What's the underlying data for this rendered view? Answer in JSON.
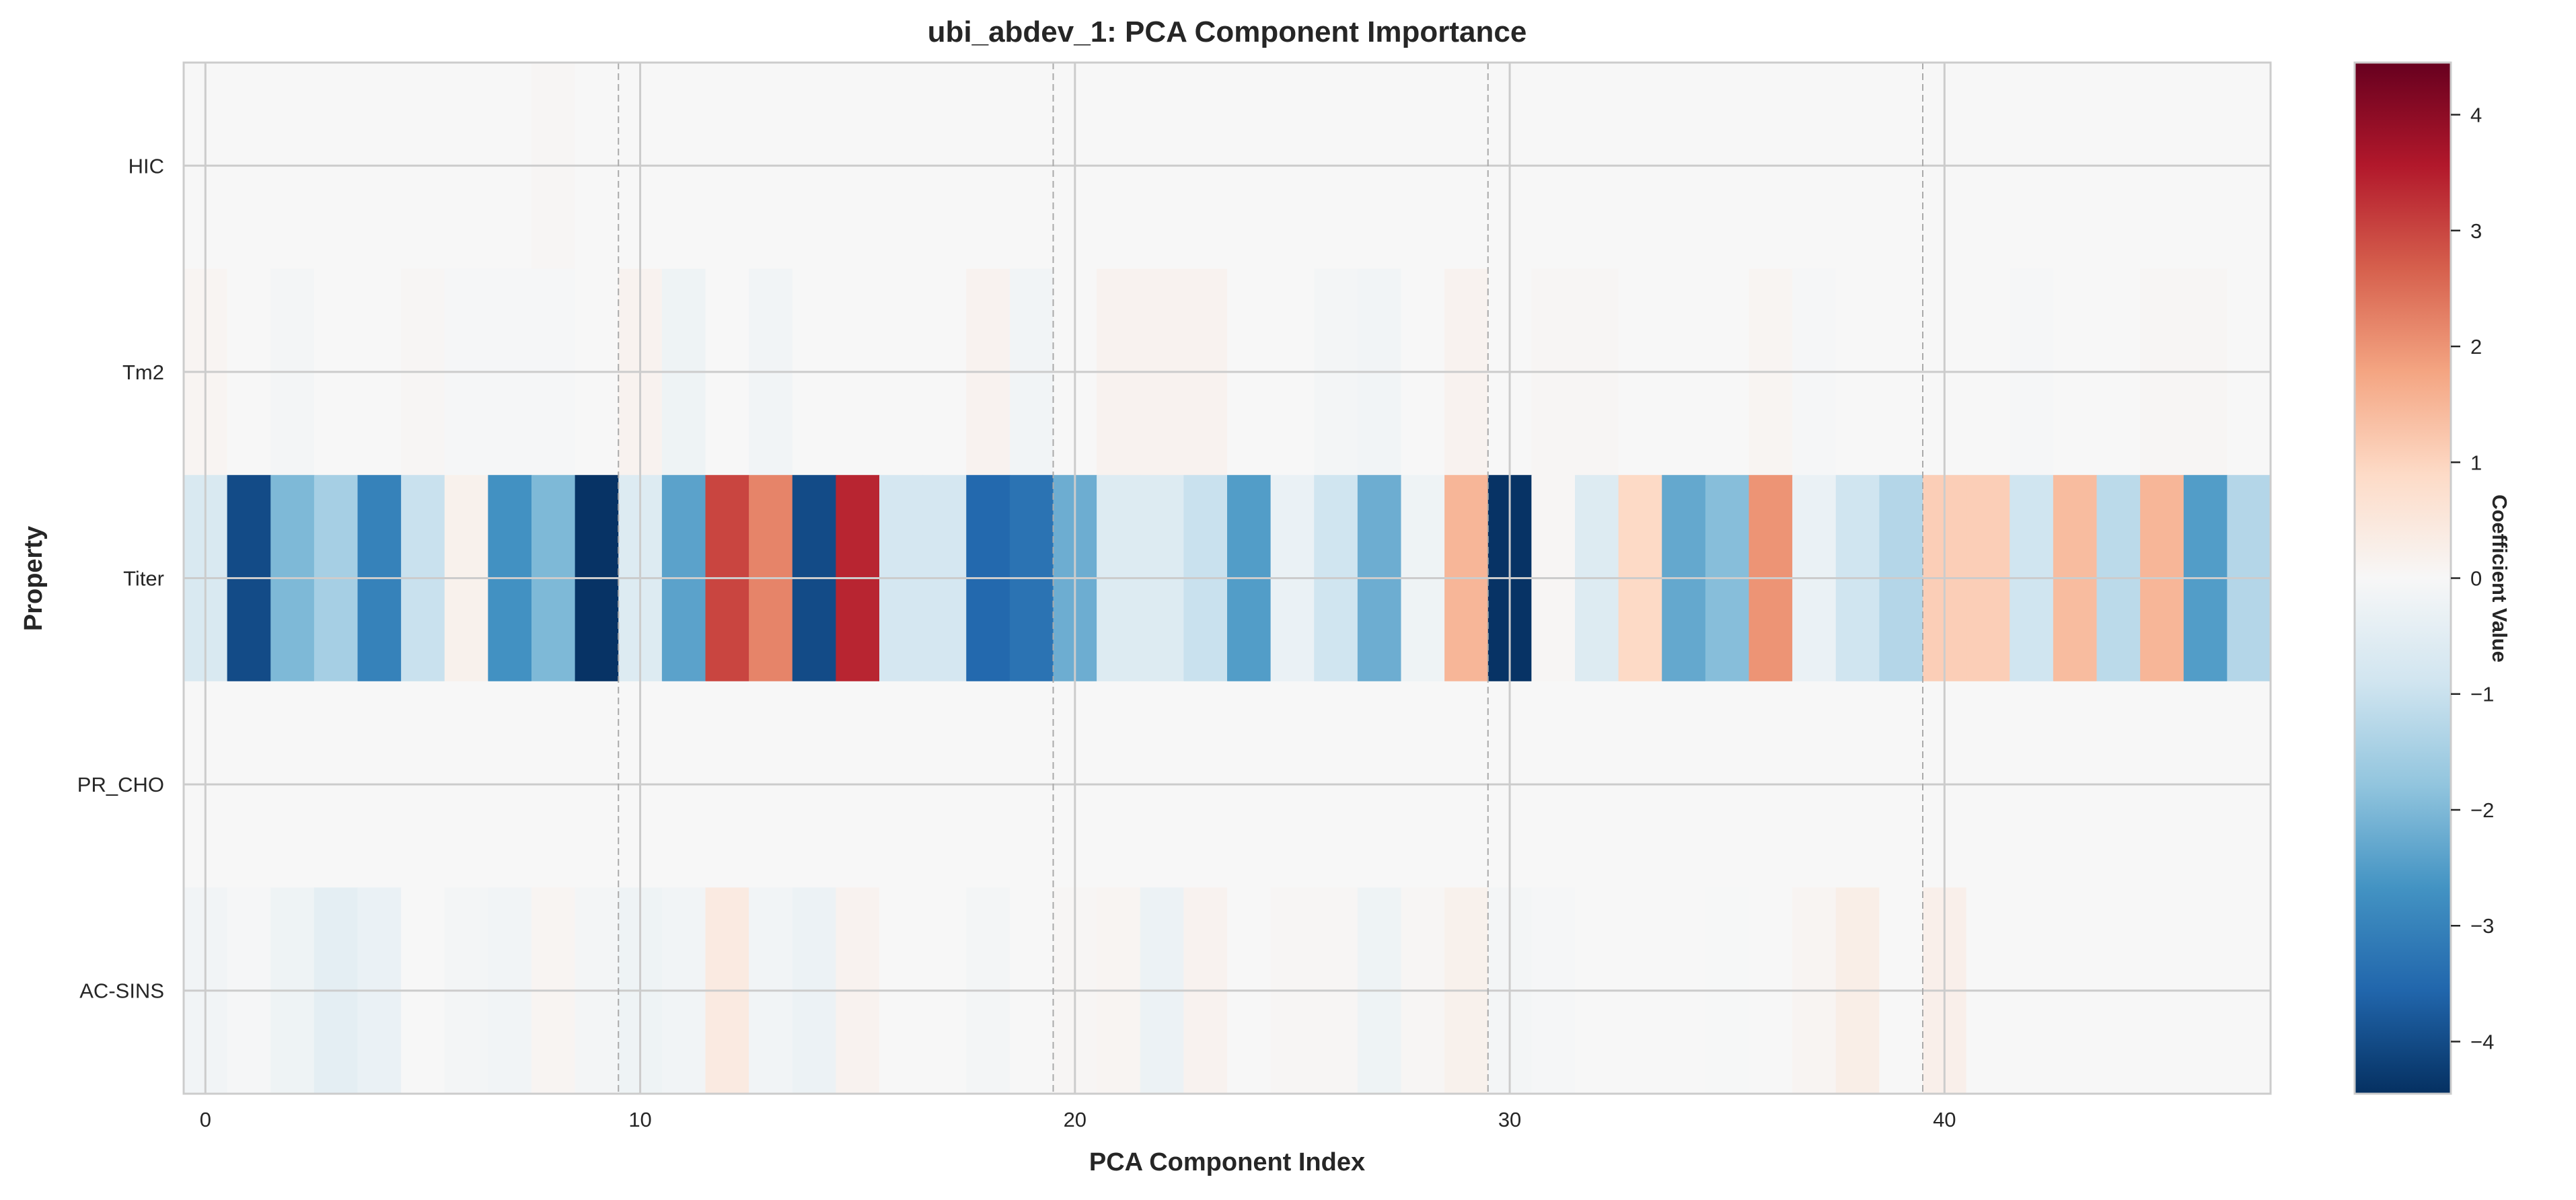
{
  "chart_data": {
    "type": "heatmap",
    "title": "ubi_abdev_1: PCA Component Importance",
    "xlabel": "PCA Component Index",
    "ylabel": "Property",
    "colorbar_label": "Coefficient Value",
    "colormap": "RdBu_r",
    "colormap_stops": [
      "#053061",
      "#2166ac",
      "#4393c3",
      "#92c5de",
      "#d1e5f0",
      "#f7f7f7",
      "#fddbc7",
      "#f4a582",
      "#d6604d",
      "#b2182b",
      "#67001f"
    ],
    "vmin": -4.45,
    "vmax": 4.45,
    "colorbar_ticks": [
      -4,
      -3,
      -2,
      -1,
      0,
      1,
      2,
      3,
      4
    ],
    "x_ticks": [
      0,
      10,
      20,
      30,
      40
    ],
    "xlim": [
      -0.5,
      47.5
    ],
    "grid": true,
    "group_separators": [
      9.5,
      19.5,
      29.5,
      39.5
    ],
    "rows": [
      "HIC",
      "Tm2",
      "Titer",
      "PR_CHO",
      "AC-SINS"
    ],
    "values": [
      [
        0,
        0,
        0,
        0,
        0,
        0,
        0,
        0,
        0.05,
        0,
        0,
        0,
        0,
        0,
        0,
        0,
        0,
        0,
        0,
        0,
        0,
        0,
        0,
        0,
        0,
        0,
        0,
        0,
        0,
        0,
        0,
        0,
        0,
        0,
        0,
        0,
        0,
        0,
        0,
        0,
        0,
        0,
        0,
        0,
        0,
        0,
        0,
        0
      ],
      [
        0.1,
        0,
        -0.1,
        0,
        0,
        0.05,
        -0.05,
        -0.05,
        -0.05,
        0,
        0.15,
        -0.2,
        0,
        -0.15,
        0,
        0,
        0,
        0,
        0.15,
        -0.15,
        0,
        0.15,
        0.15,
        0.15,
        0,
        0,
        -0.1,
        -0.15,
        0,
        0.15,
        0,
        0.05,
        0.05,
        0,
        0,
        0,
        0.1,
        -0.05,
        0,
        0,
        0,
        0,
        -0.05,
        0,
        0,
        0.05,
        0.05,
        0
      ],
      [
        -0.7,
        -4.0,
        -2.0,
        -1.5,
        -3.0,
        -1.0,
        0.2,
        -2.7,
        -2.0,
        -4.4,
        -0.6,
        -2.4,
        3.0,
        2.2,
        -4.0,
        3.4,
        -0.8,
        -0.8,
        -3.5,
        -3.3,
        -2.2,
        -0.6,
        -0.6,
        -1.0,
        -2.5,
        -0.3,
        -0.9,
        -2.2,
        -0.2,
        1.5,
        -4.4,
        0.05,
        -0.6,
        0.9,
        -2.3,
        -1.9,
        2.0,
        -0.3,
        -0.9,
        -1.3,
        1.1,
        1.1,
        -0.9,
        1.4,
        -1.2,
        1.5,
        -2.5,
        -1.3
      ],
      [
        0,
        0,
        0,
        0,
        0,
        0,
        0,
        0,
        0,
        0,
        0,
        0,
        0,
        0,
        0,
        0,
        0,
        0,
        0,
        0,
        0,
        0,
        0,
        0,
        0,
        0,
        0,
        0,
        0,
        0,
        0,
        0,
        0,
        0,
        0,
        0,
        0,
        0,
        0,
        0,
        0,
        0,
        0,
        0,
        0,
        0,
        0,
        0
      ],
      [
        -0.15,
        -0.05,
        -0.2,
        -0.45,
        -0.3,
        0,
        -0.1,
        -0.15,
        0.1,
        -0.1,
        -0.2,
        -0.15,
        0.4,
        -0.15,
        -0.25,
        0.15,
        0,
        0,
        -0.1,
        0,
        0.05,
        0.1,
        -0.25,
        0.15,
        0,
        0.05,
        0.05,
        -0.2,
        0.05,
        0.2,
        -0.1,
        -0.05,
        0,
        0,
        0,
        -0.02,
        0,
        0.1,
        0.3,
        0,
        0.25,
        0,
        0,
        0,
        0,
        0,
        0,
        0
      ]
    ]
  }
}
